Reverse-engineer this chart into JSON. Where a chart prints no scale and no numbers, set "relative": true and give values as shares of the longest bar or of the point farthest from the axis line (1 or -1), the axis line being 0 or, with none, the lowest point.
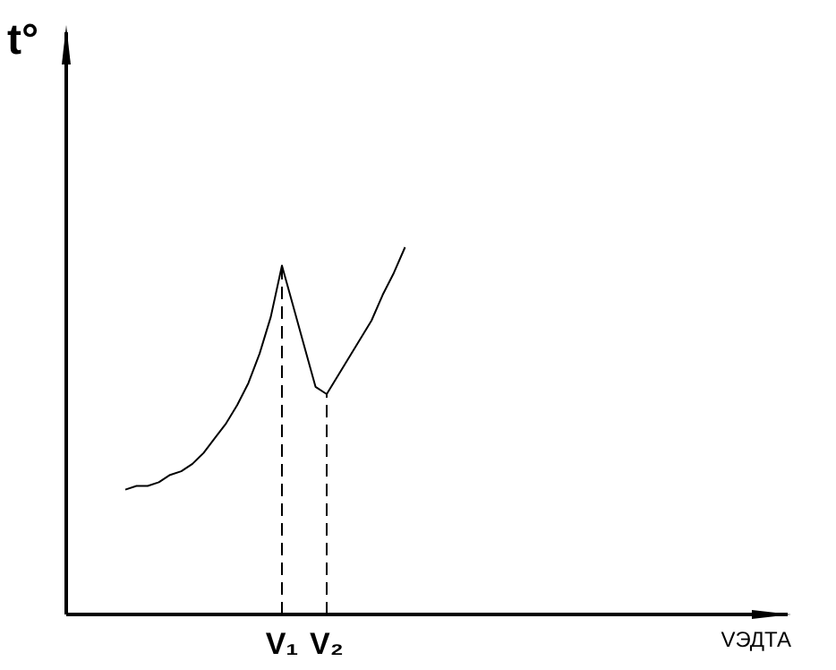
{
  "chart_data": {
    "type": "line",
    "relative": true,
    "ylabel": "t°",
    "annotations": [
      "VЭДТА"
    ],
    "categories": [
      null,
      null,
      null,
      null,
      null,
      null,
      null,
      null,
      null,
      null,
      null,
      null,
      null,
      null,
      "V₁",
      null,
      null,
      null,
      "V₂",
      null,
      null,
      null,
      null,
      null,
      null,
      null
    ],
    "series": [
      {
        "color": "#000000",
        "values": [
          0.34,
          0.35,
          0.35,
          0.36,
          0.38,
          0.39,
          0.41,
          0.44,
          0.48,
          0.52,
          0.57,
          0.63,
          0.71,
          0.81,
          0.95,
          0.84,
          0.73,
          0.62,
          0.6,
          0.65,
          0.7,
          0.75,
          0.8,
          0.87,
          0.93,
          1.0
        ]
      }
    ],
    "ref_lines": [
      {
        "axis": "x",
        "value": "V₁",
        "line_style": "dashed",
        "color": "#000000"
      },
      {
        "axis": "x",
        "value": "V₂",
        "line_style": "dashed",
        "color": "#000000"
      }
    ],
    "grid": false,
    "marker": "none",
    "line_style": "solid"
  }
}
